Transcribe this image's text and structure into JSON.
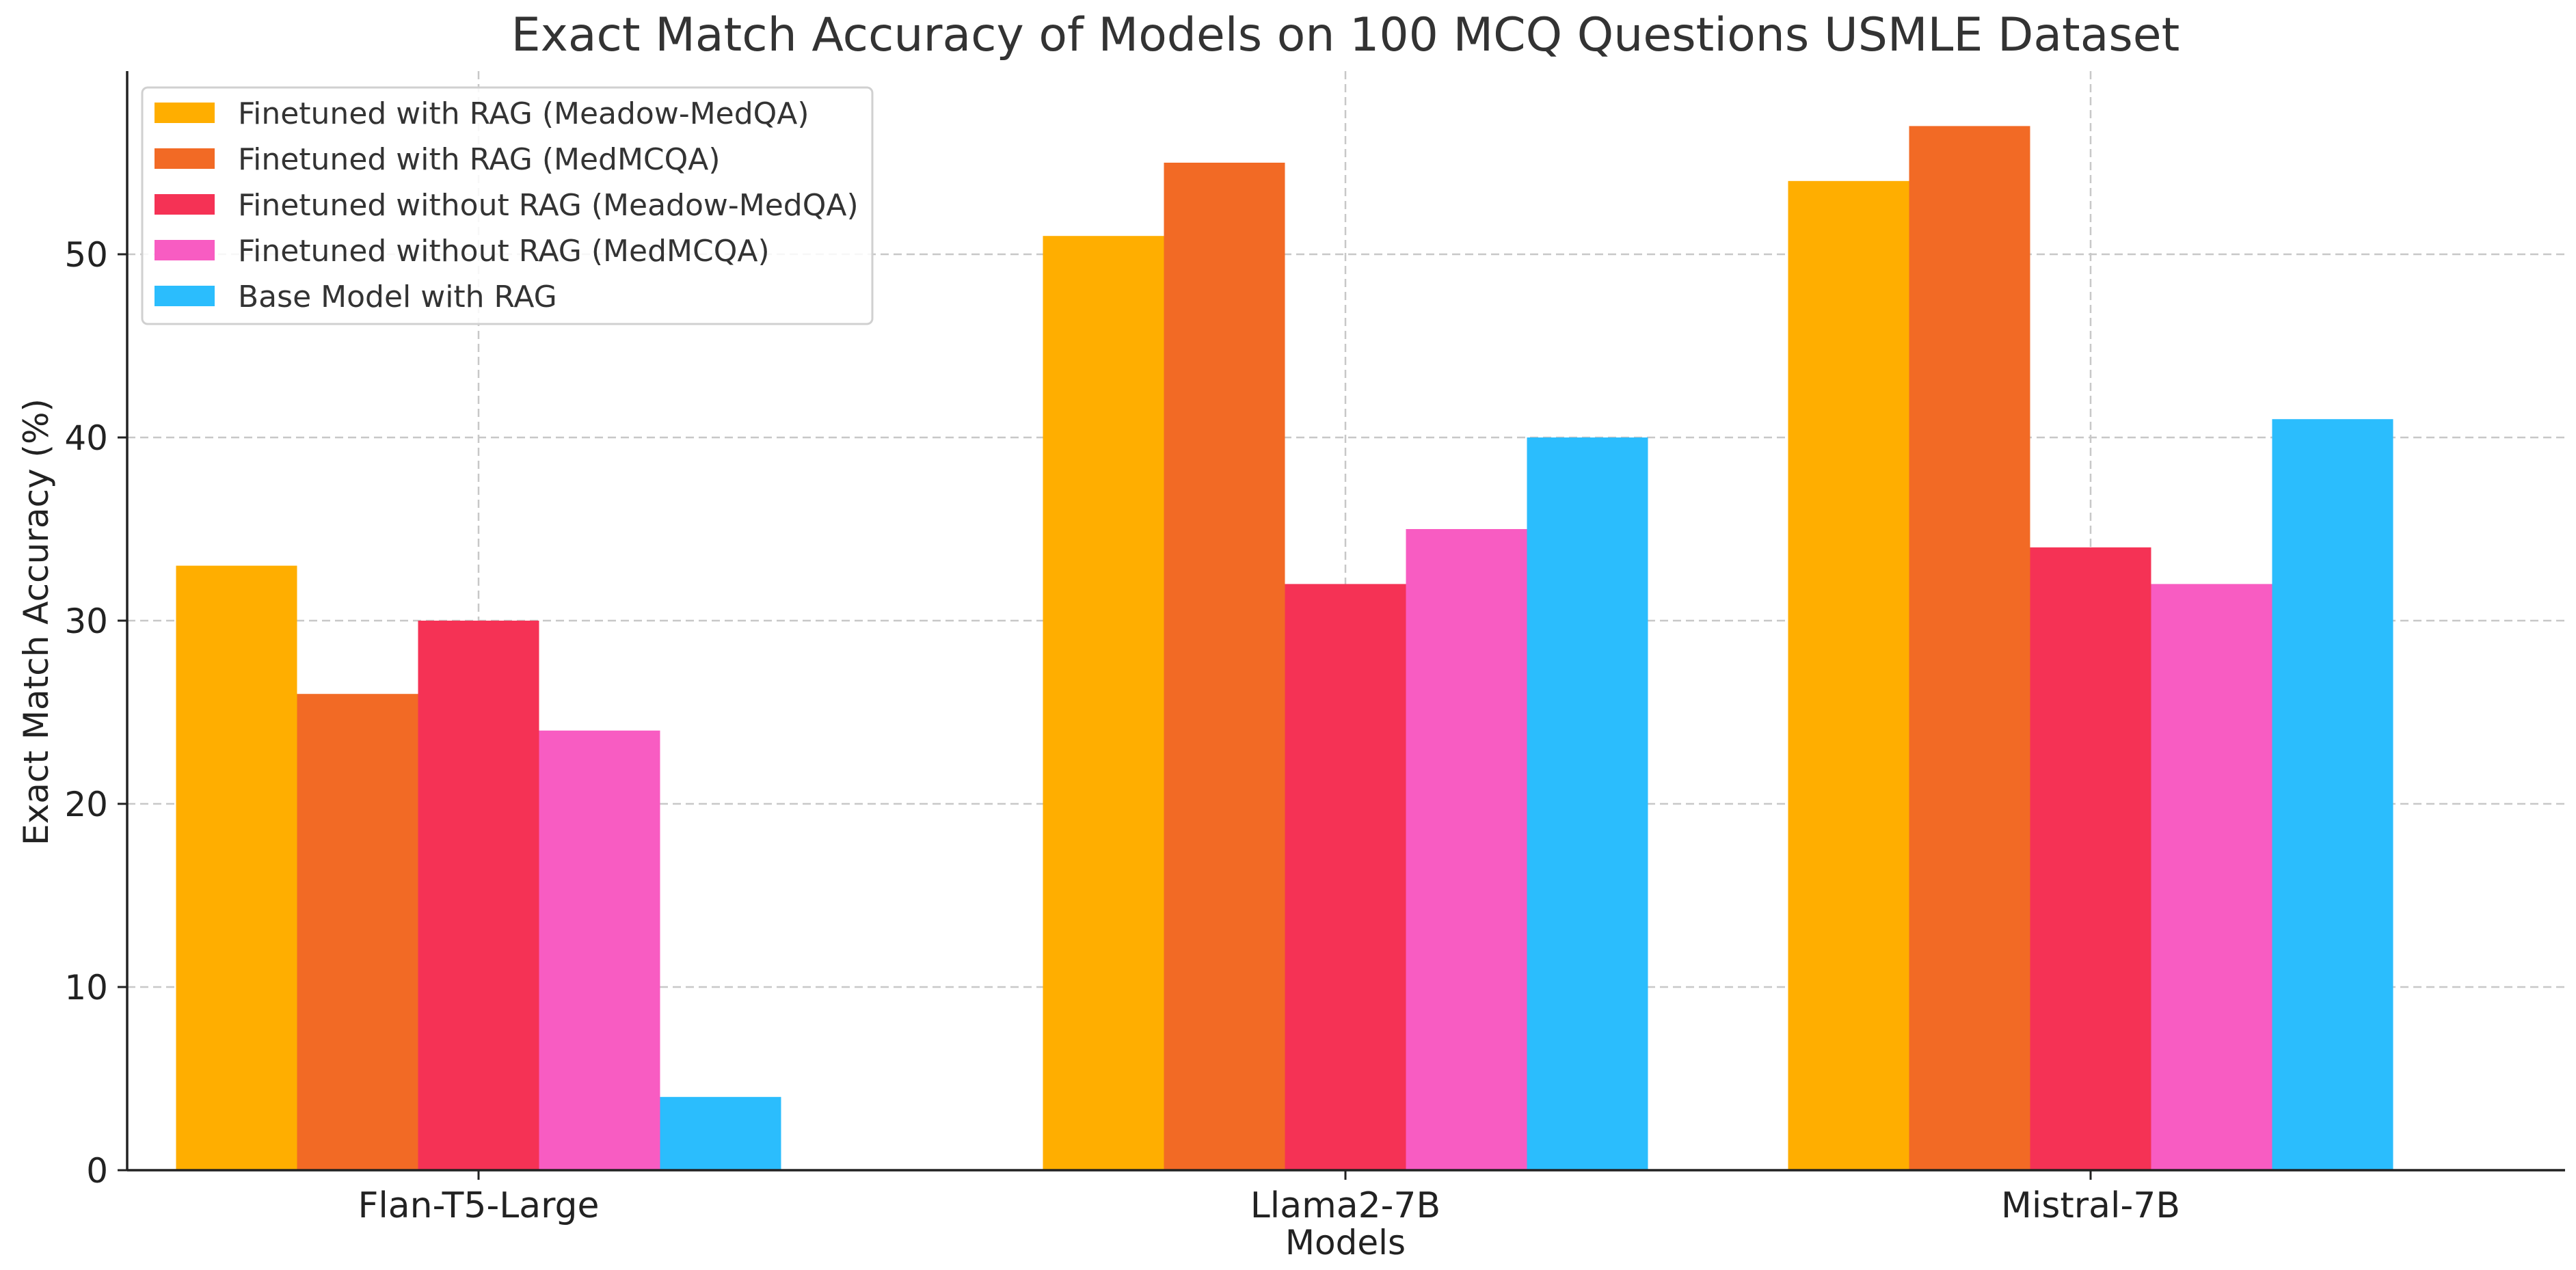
{
  "chart_data": {
    "type": "bar",
    "title": "Exact Match Accuracy of Models on 100 MCQ Questions USMLE Dataset",
    "xlabel": "Models",
    "ylabel": "Exact Match Accuracy (%)",
    "categories": [
      "Flan-T5-Large",
      "Llama2-7B",
      "Mistral-7B"
    ],
    "ylim": [
      0,
      60
    ],
    "yticks": [
      0,
      10,
      20,
      30,
      40,
      50
    ],
    "grid": true,
    "legend_position": "top-left",
    "series": [
      {
        "name": "Finetuned with RAG (Meadow-MedQA)",
        "color": "#FFAE00",
        "values": [
          33,
          51,
          54
        ]
      },
      {
        "name": "Finetuned with RAG (MedMCQA)",
        "color": "#F26A25",
        "values": [
          26,
          55,
          57
        ]
      },
      {
        "name": "Finetuned without RAG (Meadow-MedQA)",
        "color": "#F53255",
        "values": [
          30,
          32,
          34
        ]
      },
      {
        "name": "Finetuned without RAG (MedMCQA)",
        "color": "#F85CC2",
        "values": [
          24,
          35,
          32
        ]
      },
      {
        "name": "Base Model with RAG",
        "color": "#2BBDFD",
        "values": [
          4,
          40,
          41
        ]
      }
    ]
  }
}
